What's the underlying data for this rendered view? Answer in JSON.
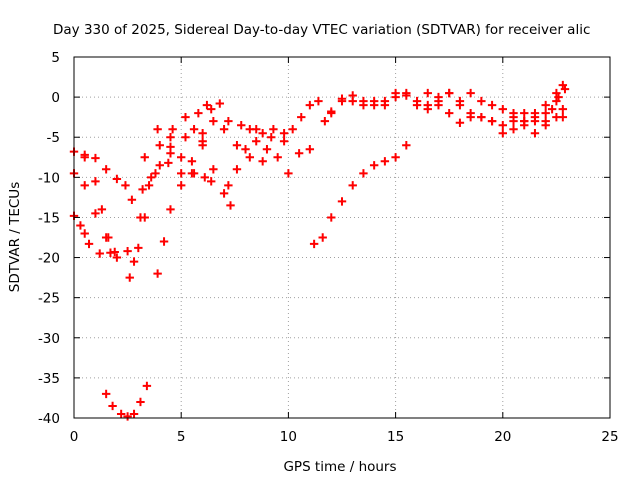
{
  "chart_data": {
    "type": "scatter",
    "title": "Day 330 of 2025, Sidereal Day-to-day VTEC variation (SDTVAR) for receiver alic",
    "xlabel": "GPS time / hours",
    "ylabel": "SDTVAR / TECUs",
    "xlim": [
      0,
      25
    ],
    "ylim": [
      -40,
      5
    ],
    "x_ticks": [
      0,
      5,
      10,
      15,
      20,
      25
    ],
    "y_ticks": [
      5,
      0,
      -5,
      -10,
      -15,
      -20,
      -25,
      -30,
      -35,
      -40
    ],
    "grid": true,
    "legend": "none",
    "marker_color": "#ff0000",
    "series": [
      {
        "name": "s1",
        "points": [
          [
            0.0,
            -6.8
          ],
          [
            0.5,
            -7.2
          ],
          [
            1.0,
            -7.6
          ],
          [
            1.5,
            -9.0
          ],
          [
            2.0,
            -10.2
          ],
          [
            2.4,
            -11.0
          ],
          [
            2.7,
            -12.8
          ],
          [
            3.2,
            -11.5
          ],
          [
            3.8,
            -9.5
          ],
          [
            4.4,
            -8.2
          ]
        ]
      },
      {
        "name": "s2",
        "points": [
          [
            0.0,
            -9.5
          ],
          [
            0.5,
            -11.0
          ],
          [
            1.0,
            -14.5
          ],
          [
            1.5,
            -17.5
          ],
          [
            2.0,
            -20.0
          ],
          [
            2.6,
            -22.5
          ],
          [
            2.8,
            -20.5
          ],
          [
            3.1,
            -15.0
          ],
          [
            3.5,
            -11.0
          ],
          [
            4.0,
            -8.5
          ],
          [
            4.5,
            -7.0
          ]
        ]
      },
      {
        "name": "s3",
        "points": [
          [
            0.0,
            -14.8
          ],
          [
            0.3,
            -16.0
          ],
          [
            0.5,
            -17.0
          ]
        ]
      },
      {
        "name": "s4",
        "points": [
          [
            0.5,
            -7.5
          ],
          [
            1.0,
            -10.5
          ],
          [
            1.3,
            -14.0
          ],
          [
            1.6,
            -17.5
          ],
          [
            1.9,
            -19.3
          ],
          [
            2.5,
            -19.2
          ],
          [
            3.0,
            -18.8
          ],
          [
            3.3,
            -15.0
          ],
          [
            3.6,
            -10.0
          ],
          [
            4.0,
            -6.0
          ],
          [
            4.6,
            -4.0
          ],
          [
            5.2,
            -2.5
          ],
          [
            5.8,
            -2.0
          ],
          [
            6.2,
            -1.0
          ]
        ]
      },
      {
        "name": "s5",
        "points": [
          [
            0.7,
            -18.3
          ],
          [
            1.2,
            -19.5
          ],
          [
            1.7,
            -19.4
          ]
        ]
      },
      {
        "name": "s6",
        "points": [
          [
            3.3,
            -7.5
          ],
          [
            3.9,
            -4.0
          ],
          [
            4.5,
            -5.0
          ],
          [
            5.0,
            -7.5
          ],
          [
            5.6,
            -9.5
          ],
          [
            6.1,
            -10.0
          ],
          [
            6.4,
            -10.5
          ]
        ]
      },
      {
        "name": "s7",
        "points": [
          [
            3.9,
            -22.0
          ],
          [
            4.2,
            -18.0
          ],
          [
            4.5,
            -14.0
          ],
          [
            5.0,
            -11.0
          ],
          [
            5.5,
            -9.5
          ],
          [
            6.0,
            -6.0
          ],
          [
            6.5,
            -3.0
          ],
          [
            7.0,
            -4.0
          ],
          [
            7.6,
            -6.0
          ],
          [
            8.2,
            -7.5
          ],
          [
            8.8,
            -8.0
          ]
        ]
      },
      {
        "name": "s8",
        "points": [
          [
            4.5,
            -6.2
          ],
          [
            5.2,
            -5.0
          ],
          [
            5.6,
            -4.0
          ],
          [
            6.0,
            -5.5
          ],
          [
            6.5,
            -9.0
          ],
          [
            7.0,
            -12.0
          ],
          [
            7.3,
            -13.5
          ]
        ]
      },
      {
        "name": "s9",
        "points": [
          [
            5.0,
            -9.5
          ],
          [
            5.5,
            -8.0
          ],
          [
            6.0,
            -4.5
          ],
          [
            6.4,
            -1.5
          ],
          [
            6.8,
            -0.8
          ],
          [
            7.2,
            -3.0
          ],
          [
            7.8,
            -3.5
          ],
          [
            8.5,
            -4.0
          ],
          [
            9.2,
            -5.0
          ],
          [
            9.8,
            -5.5
          ],
          [
            10.5,
            -7.0
          ],
          [
            11.0,
            -6.5
          ]
        ]
      },
      {
        "name": "s10",
        "points": [
          [
            7.2,
            -11.0
          ],
          [
            7.6,
            -9.0
          ],
          [
            8.0,
            -6.5
          ],
          [
            8.5,
            -5.5
          ],
          [
            9.0,
            -6.5
          ],
          [
            9.5,
            -7.5
          ],
          [
            10.0,
            -9.5
          ]
        ]
      },
      {
        "name": "s11",
        "points": [
          [
            8.2,
            -4.0
          ],
          [
            8.8,
            -4.5
          ],
          [
            9.3,
            -4.0
          ],
          [
            9.8,
            -4.5
          ],
          [
            10.2,
            -4.0
          ],
          [
            10.6,
            -2.5
          ],
          [
            11.0,
            -1.0
          ],
          [
            11.4,
            -0.5
          ],
          [
            11.7,
            -3.0
          ],
          [
            12.0,
            -1.8
          ],
          [
            12.5,
            -0.5
          ],
          [
            13.0,
            0.2
          ],
          [
            13.5,
            -0.5
          ],
          [
            14.0,
            -1.0
          ],
          [
            14.5,
            -0.5
          ],
          [
            15.0,
            0.0
          ],
          [
            15.5,
            0.5
          ],
          [
            16.0,
            -0.5
          ],
          [
            16.5,
            -1.0
          ],
          [
            17.0,
            -0.5
          ],
          [
            17.5,
            0.5
          ],
          [
            18.0,
            -0.5
          ]
        ]
      },
      {
        "name": "s12",
        "points": [
          [
            12.0,
            -2.0
          ],
          [
            12.5,
            -0.2
          ],
          [
            13.0,
            -0.5
          ],
          [
            13.5,
            -1.0
          ],
          [
            14.0,
            -0.5
          ],
          [
            14.5,
            -1.0
          ],
          [
            15.0,
            0.5
          ],
          [
            15.5,
            0.2
          ],
          [
            16.0,
            -1.0
          ],
          [
            16.5,
            0.5
          ],
          [
            17.0,
            0.0
          ],
          [
            17.5,
            0.5
          ],
          [
            18.0,
            -1.0
          ],
          [
            18.5,
            -2.0
          ],
          [
            19.0,
            -2.5
          ],
          [
            19.5,
            -3.0
          ],
          [
            20.0,
            -3.5
          ],
          [
            20.5,
            -3.0
          ],
          [
            21.0,
            -3.0
          ],
          [
            21.5,
            -3.0
          ],
          [
            22.0,
            -3.0
          ],
          [
            22.5,
            -2.5
          ],
          [
            22.8,
            -2.5
          ]
        ]
      },
      {
        "name": "s13",
        "points": [
          [
            11.2,
            -18.3
          ],
          [
            11.6,
            -17.5
          ],
          [
            12.0,
            -15.0
          ],
          [
            12.5,
            -13.0
          ],
          [
            13.0,
            -11.0
          ],
          [
            13.5,
            -9.5
          ],
          [
            14.0,
            -8.5
          ],
          [
            14.5,
            -8.0
          ],
          [
            15.0,
            -7.5
          ],
          [
            15.5,
            -6.0
          ]
        ]
      },
      {
        "name": "s14",
        "points": [
          [
            16.5,
            -1.5
          ],
          [
            17.0,
            -1.0
          ],
          [
            17.5,
            -2.0
          ],
          [
            18.0,
            -3.2
          ],
          [
            18.5,
            -2.5
          ],
          [
            19.0,
            -2.5
          ],
          [
            19.5,
            -3.0
          ],
          [
            20.0,
            -4.5
          ],
          [
            20.5,
            -4.0
          ],
          [
            21.0,
            -3.0
          ],
          [
            21.5,
            -2.5
          ],
          [
            22.0,
            -2.0
          ],
          [
            22.5,
            -0.5
          ],
          [
            22.8,
            -1.5
          ]
        ]
      },
      {
        "name": "s15",
        "points": [
          [
            18.5,
            0.5
          ],
          [
            19.0,
            -0.5
          ],
          [
            19.5,
            -1.0
          ],
          [
            20.0,
            -1.5
          ],
          [
            20.5,
            -2.0
          ],
          [
            21.0,
            -2.0
          ],
          [
            21.5,
            -2.0
          ],
          [
            22.0,
            -1.0
          ],
          [
            22.5,
            0.5
          ],
          [
            22.8,
            1.5
          ]
        ]
      },
      {
        "name": "s16",
        "points": [
          [
            20.5,
            -2.5
          ],
          [
            21.0,
            -3.5
          ],
          [
            21.5,
            -4.5
          ],
          [
            22.0,
            -3.5
          ],
          [
            22.3,
            -1.5
          ],
          [
            22.6,
            0.0
          ],
          [
            22.9,
            1.0
          ]
        ]
      },
      {
        "name": "s17",
        "points": [
          [
            1.5,
            -37.0
          ],
          [
            1.8,
            -38.5
          ],
          [
            2.2,
            -39.5
          ],
          [
            2.5,
            -39.8
          ],
          [
            2.8,
            -39.5
          ],
          [
            3.1,
            -38.0
          ],
          [
            3.4,
            -36.0
          ]
        ]
      }
    ]
  }
}
